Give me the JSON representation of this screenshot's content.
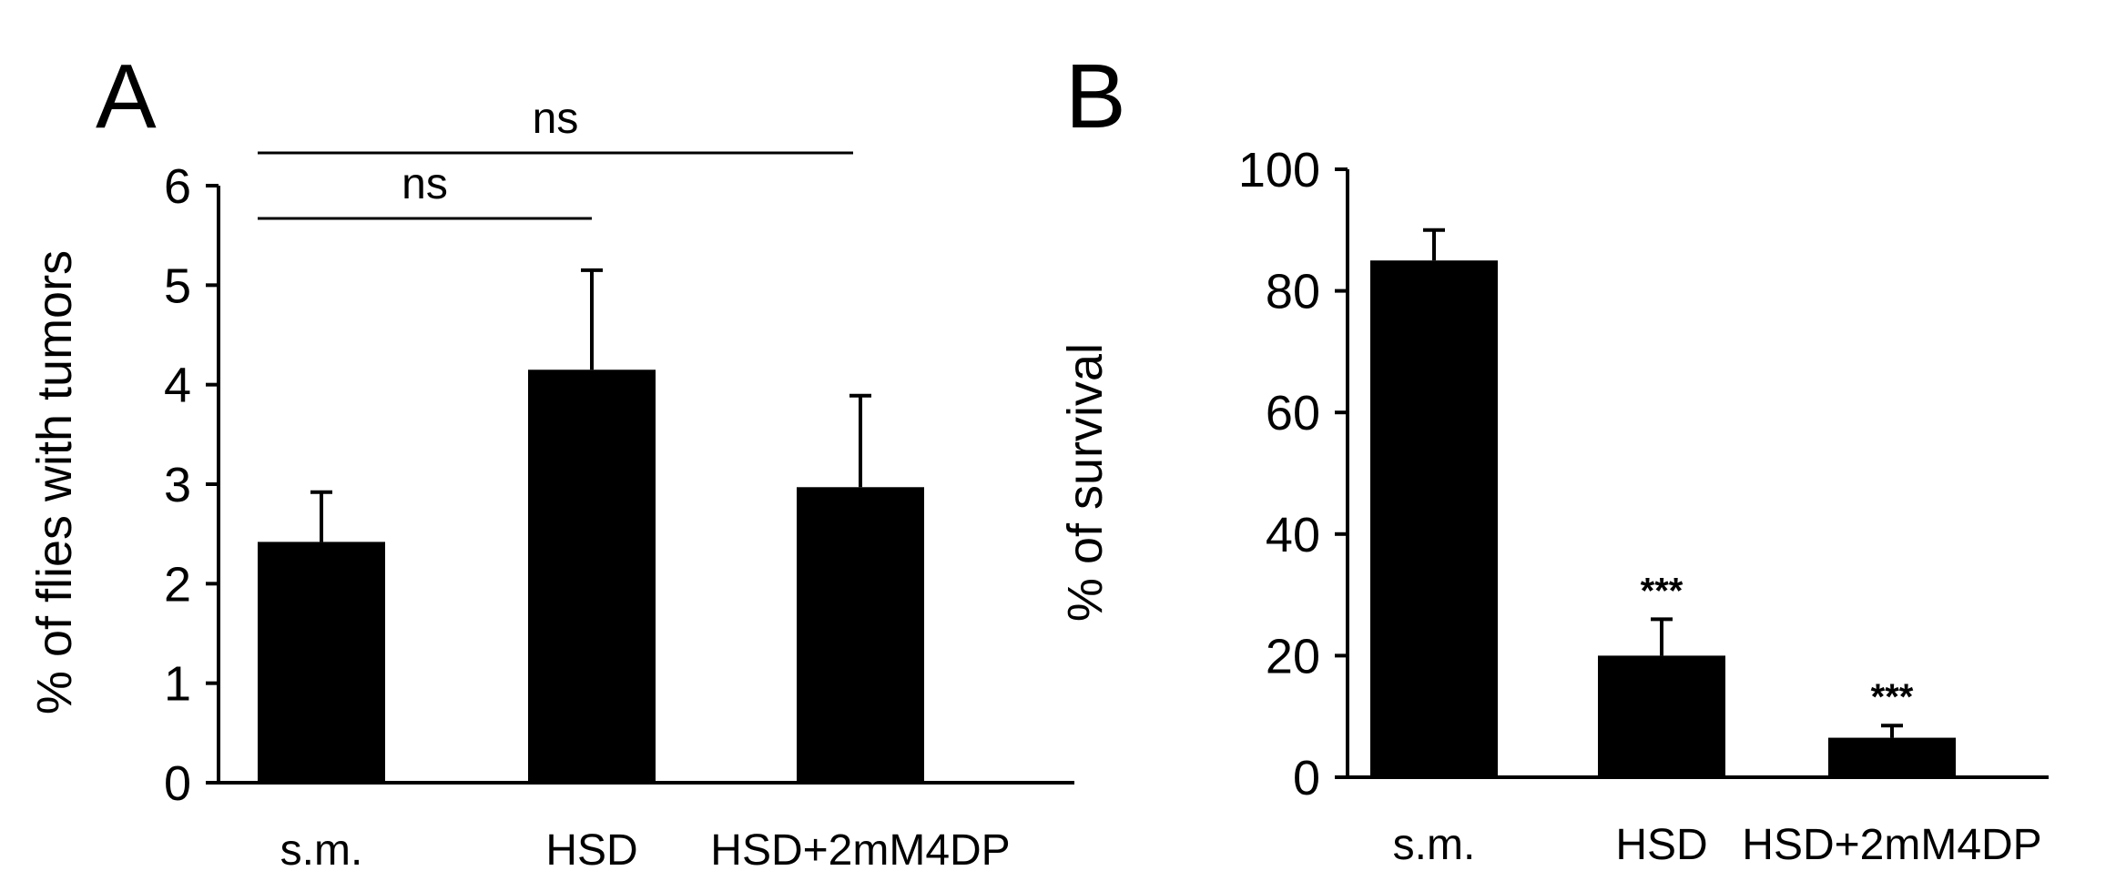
{
  "colors": {
    "bar": "#000000",
    "axis": "#000000",
    "background": "#ffffff"
  },
  "chart_data": [
    {
      "type": "bar",
      "panel_label": "A",
      "title": "",
      "xlabel": "",
      "ylabel": "% of flies with tumors",
      "ylim": [
        0,
        6
      ],
      "yticks": [
        0,
        1,
        2,
        3,
        4,
        5,
        6
      ],
      "grid": false,
      "categories": [
        "s.m.",
        "HSD",
        "HSD+2mM4DP"
      ],
      "values": [
        2.42,
        4.15,
        2.97
      ],
      "errors": [
        0.5,
        1.0,
        0.92
      ],
      "annotations": [
        {
          "text": "ns",
          "from": 0,
          "to": 1
        },
        {
          "text": "ns",
          "from": 0,
          "to": 2
        }
      ],
      "bar_labels": [
        "",
        "",
        ""
      ]
    },
    {
      "type": "bar",
      "panel_label": "B",
      "title": "",
      "xlabel": "",
      "ylabel": "% of survival",
      "ylim": [
        0,
        100
      ],
      "yticks": [
        0,
        20,
        40,
        60,
        80,
        100
      ],
      "grid": false,
      "categories": [
        "s.m.",
        "HSD",
        "HSD+2mM4DP"
      ],
      "values": [
        85,
        20,
        6.5
      ],
      "errors": [
        5,
        6,
        2
      ],
      "annotations": [],
      "bar_labels": [
        "",
        "***",
        "***"
      ]
    }
  ]
}
